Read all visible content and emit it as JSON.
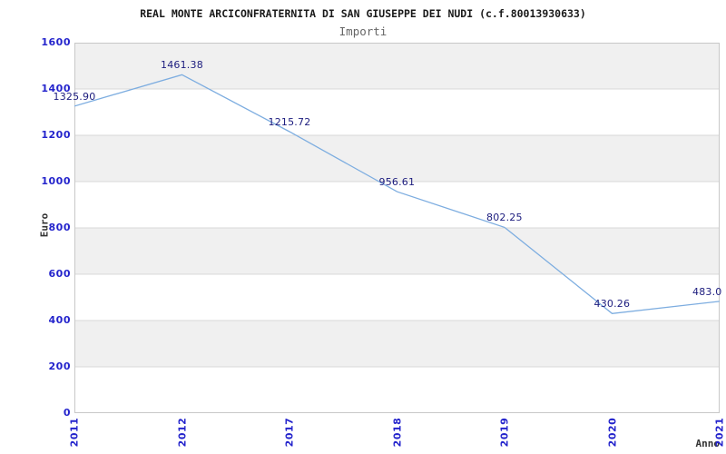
{
  "header": {
    "title": "REAL MONTE ARCICONFRATERNITA DI SAN GIUSEPPE DEI NUDI (c.f.80013930633)",
    "subtitle": "Importi"
  },
  "chart_data": {
    "type": "line",
    "title": "REAL MONTE ARCICONFRATERNITA DI SAN GIUSEPPE DEI NUDI (c.f.80013930633)",
    "subtitle": "Importi",
    "categories": [
      "2011",
      "2012",
      "2017",
      "2018",
      "2019",
      "2020",
      "2021"
    ],
    "series": [
      {
        "name": "Importi",
        "values": [
          1325.9,
          1461.38,
          1215.72,
          956.61,
          802.25,
          430.26,
          483.0
        ]
      }
    ],
    "point_labels": [
      "1325.90",
      "1461.38",
      "1215.72",
      "956.61",
      "802.25",
      "430.26",
      "483.0"
    ],
    "xlabel": "Anno",
    "ylabel": "Euro",
    "ylim": [
      0,
      1600
    ],
    "ytick_step": 200,
    "ytick_labels": [
      "0",
      "200",
      "400",
      "600",
      "800",
      "1000",
      "1200",
      "1400",
      "1600"
    ],
    "grid": "horizontal-on",
    "alternating_bands": true,
    "legend_position": "none",
    "colors": {
      "line": "#7dade0",
      "tick_label": "#2424cc",
      "point_label": "#1c1c7e",
      "band": "#f0f0f0",
      "gridline": "#d9d9d9",
      "plot_border": "#c8c8c8",
      "axis_title": "#333333"
    }
  }
}
